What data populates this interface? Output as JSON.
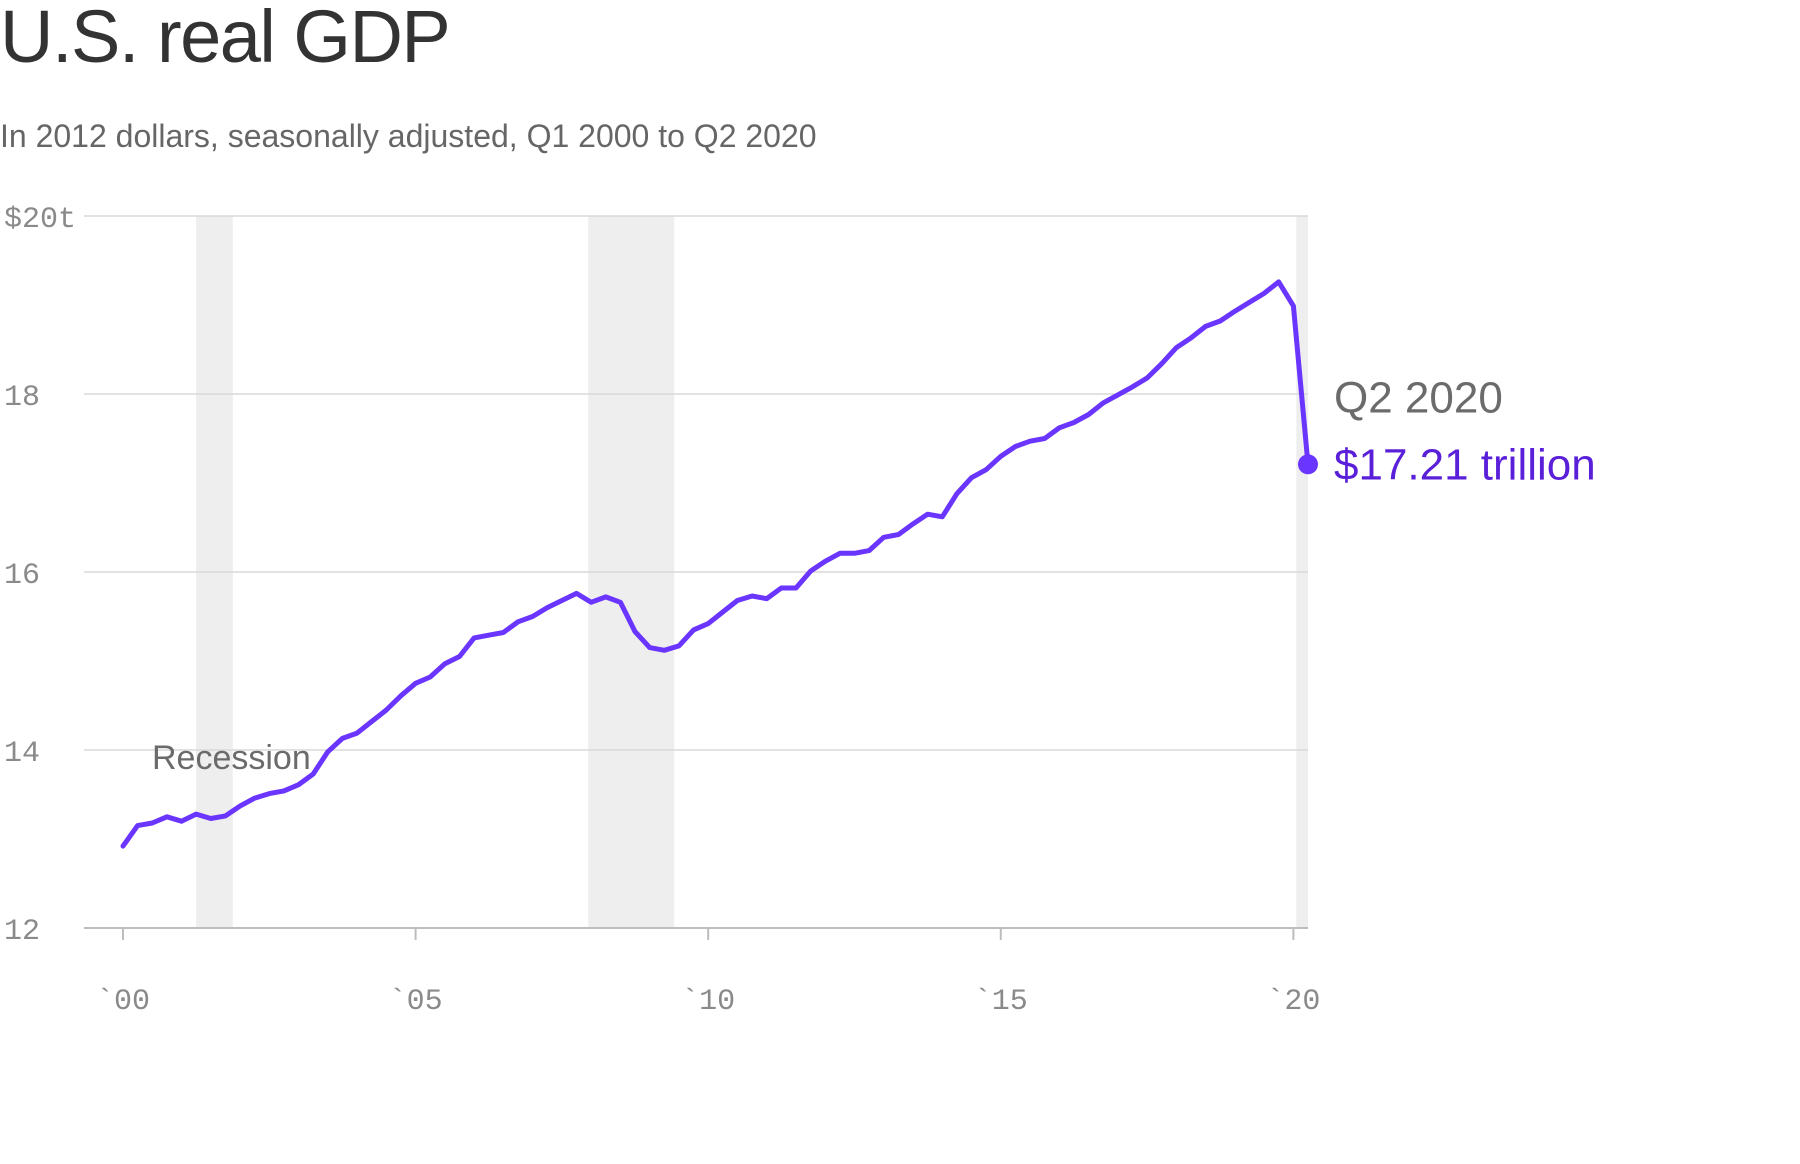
{
  "chart_data": {
    "type": "line",
    "title": "U.S. real GDP",
    "subtitle": "In 2012 dollars, seasonally adjusted, Q1 2000 to  Q2 2020",
    "ylim": [
      12,
      20
    ],
    "xlim": [
      2000.0,
      2020.25
    ],
    "yticks": [
      {
        "value": 20,
        "label": "$20t"
      },
      {
        "value": 18,
        "label": "18"
      },
      {
        "value": 16,
        "label": "16"
      },
      {
        "value": 14,
        "label": "14"
      },
      {
        "value": 12,
        "label": "12"
      }
    ],
    "xticks": [
      {
        "value": 2000,
        "label": "`00"
      },
      {
        "value": 2005,
        "label": "`05"
      },
      {
        "value": 2010,
        "label": "`10"
      },
      {
        "value": 2015,
        "label": "`15"
      },
      {
        "value": 2020,
        "label": "`20"
      }
    ],
    "grid": true,
    "recession_label": "Recession",
    "recessions": [
      {
        "start": 2001.25,
        "end": 2001.875
      },
      {
        "start": 2007.95,
        "end": 2009.42
      },
      {
        "start": 2020.05,
        "end": 2020.25
      }
    ],
    "line_color": "#6a35ff",
    "callout_value_color": "#5a1fd9",
    "recession_color": "#eeeeee",
    "callout": {
      "date_label": "Q2 2020",
      "value_label": "$17.21 trillion",
      "x": 2020.25,
      "y": 17.21
    },
    "series": [
      {
        "points": [
          [
            2000.0,
            12.92
          ],
          [
            2000.25,
            13.15
          ],
          [
            2000.5,
            13.18
          ],
          [
            2000.75,
            13.25
          ],
          [
            2001.0,
            13.2
          ],
          [
            2001.25,
            13.28
          ],
          [
            2001.5,
            13.23
          ],
          [
            2001.75,
            13.26
          ],
          [
            2002.0,
            13.37
          ],
          [
            2002.25,
            13.46
          ],
          [
            2002.5,
            13.51
          ],
          [
            2002.75,
            13.54
          ],
          [
            2003.0,
            13.61
          ],
          [
            2003.25,
            13.73
          ],
          [
            2003.5,
            13.98
          ],
          [
            2003.75,
            14.13
          ],
          [
            2004.0,
            14.19
          ],
          [
            2004.25,
            14.32
          ],
          [
            2004.5,
            14.45
          ],
          [
            2004.75,
            14.61
          ],
          [
            2005.0,
            14.75
          ],
          [
            2005.25,
            14.82
          ],
          [
            2005.5,
            14.97
          ],
          [
            2005.75,
            15.05
          ],
          [
            2006.0,
            15.26
          ],
          [
            2006.25,
            15.29
          ],
          [
            2006.5,
            15.32
          ],
          [
            2006.75,
            15.44
          ],
          [
            2007.0,
            15.5
          ],
          [
            2007.25,
            15.6
          ],
          [
            2007.5,
            15.68
          ],
          [
            2007.75,
            15.76
          ],
          [
            2008.0,
            15.66
          ],
          [
            2008.25,
            15.72
          ],
          [
            2008.5,
            15.66
          ],
          [
            2008.75,
            15.33
          ],
          [
            2009.0,
            15.15
          ],
          [
            2009.25,
            15.12
          ],
          [
            2009.5,
            15.17
          ],
          [
            2009.75,
            15.35
          ],
          [
            2010.0,
            15.42
          ],
          [
            2010.25,
            15.55
          ],
          [
            2010.5,
            15.68
          ],
          [
            2010.75,
            15.73
          ],
          [
            2011.0,
            15.7
          ],
          [
            2011.25,
            15.82
          ],
          [
            2011.5,
            15.82
          ],
          [
            2011.75,
            16.01
          ],
          [
            2012.0,
            16.12
          ],
          [
            2012.25,
            16.21
          ],
          [
            2012.5,
            16.21
          ],
          [
            2012.75,
            16.24
          ],
          [
            2013.0,
            16.39
          ],
          [
            2013.25,
            16.42
          ],
          [
            2013.5,
            16.54
          ],
          [
            2013.75,
            16.65
          ],
          [
            2014.0,
            16.62
          ],
          [
            2014.25,
            16.88
          ],
          [
            2014.5,
            17.06
          ],
          [
            2014.75,
            17.15
          ],
          [
            2015.0,
            17.3
          ],
          [
            2015.25,
            17.41
          ],
          [
            2015.5,
            17.47
          ],
          [
            2015.75,
            17.5
          ],
          [
            2016.0,
            17.62
          ],
          [
            2016.25,
            17.68
          ],
          [
            2016.5,
            17.77
          ],
          [
            2016.75,
            17.9
          ],
          [
            2017.0,
            17.99
          ],
          [
            2017.25,
            18.08
          ],
          [
            2017.5,
            18.18
          ],
          [
            2017.75,
            18.34
          ],
          [
            2018.0,
            18.52
          ],
          [
            2018.25,
            18.63
          ],
          [
            2018.5,
            18.76
          ],
          [
            2018.75,
            18.82
          ],
          [
            2019.0,
            18.93
          ],
          [
            2019.25,
            19.03
          ],
          [
            2019.5,
            19.13
          ],
          [
            2019.75,
            19.26
          ],
          [
            2020.0,
            18.99
          ],
          [
            2020.25,
            17.21
          ]
        ]
      }
    ]
  }
}
